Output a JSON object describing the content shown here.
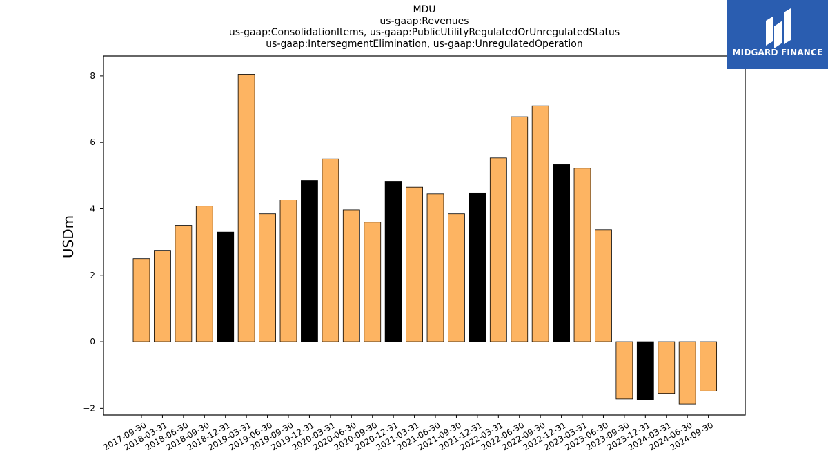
{
  "header": {
    "lines": [
      "MDU",
      "us-gaap:Revenues",
      "us-gaap:ConsolidationItems, us-gaap:PublicUtilityRegulatedOrUnregulatedStatus",
      "us-gaap:IntersegmentElimination, us-gaap:UnregulatedOperation"
    ]
  },
  "logo": {
    "text": "MIDGARD FINANCE",
    "background": "#2a5db0"
  },
  "chart_data": {
    "type": "bar",
    "title": "MDU",
    "ylabel": "USDm",
    "xlabel": "",
    "ylim": [
      -2.2,
      8.6
    ],
    "yticks": [
      -2,
      0,
      2,
      4,
      6,
      8
    ],
    "colors": {
      "quarter": "#fdb462",
      "year_end": "#000000"
    },
    "categories": [
      "2017-09-30",
      "2018-03-31",
      "2018-06-30",
      "2018-09-30",
      "2018-12-31",
      "2019-03-31",
      "2019-06-30",
      "2019-09-30",
      "2019-12-31",
      "2020-03-31",
      "2020-06-30",
      "2020-09-30",
      "2020-12-31",
      "2021-03-31",
      "2021-06-30",
      "2021-09-30",
      "2021-12-31",
      "2022-03-31",
      "2022-06-30",
      "2022-09-30",
      "2022-12-31",
      "2023-03-31",
      "2023-06-30",
      "2023-09-30",
      "2023-12-31",
      "2024-03-31",
      "2024-06-30",
      "2024-09-30"
    ],
    "values": [
      2.5,
      2.75,
      3.5,
      4.08,
      3.3,
      8.05,
      3.85,
      4.27,
      4.85,
      5.5,
      3.97,
      3.6,
      4.83,
      4.65,
      4.45,
      3.85,
      4.48,
      5.53,
      6.77,
      7.1,
      5.33,
      5.22,
      3.37,
      -1.72,
      -1.75,
      -1.55,
      -1.87,
      -1.48
    ],
    "year_end": [
      false,
      false,
      false,
      false,
      true,
      false,
      false,
      false,
      true,
      false,
      false,
      false,
      true,
      false,
      false,
      false,
      true,
      false,
      false,
      false,
      true,
      false,
      false,
      false,
      true,
      false,
      false,
      false
    ]
  }
}
